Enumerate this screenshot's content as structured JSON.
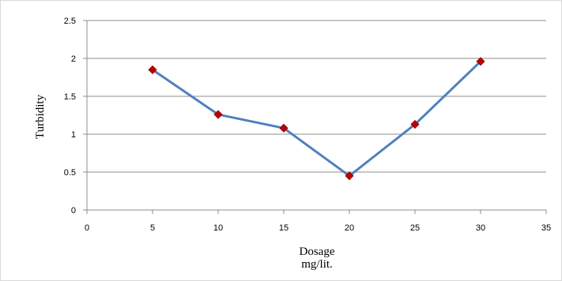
{
  "chart_data": {
    "type": "line",
    "title": "",
    "xlabel": "Dosage",
    "xlabel_unit": "mg/lit.",
    "ylabel": "Turbidity",
    "xlim": [
      0,
      35
    ],
    "ylim": [
      0,
      2.5
    ],
    "x_ticks": [
      "0",
      "5",
      "10",
      "15",
      "20",
      "25",
      "30",
      "35"
    ],
    "y_ticks": [
      "0",
      "0.5",
      "1",
      "1.5",
      "2",
      "2.5"
    ],
    "grid": "horizontal",
    "legend": "none",
    "series": [
      {
        "x": [
          5,
          10,
          15,
          20,
          25,
          30
        ],
        "y": [
          1.85,
          1.26,
          1.08,
          0.45,
          1.13,
          1.96
        ],
        "line_color": "#4f81bd",
        "marker_color": "#c00000",
        "marker": "diamond"
      }
    ]
  }
}
